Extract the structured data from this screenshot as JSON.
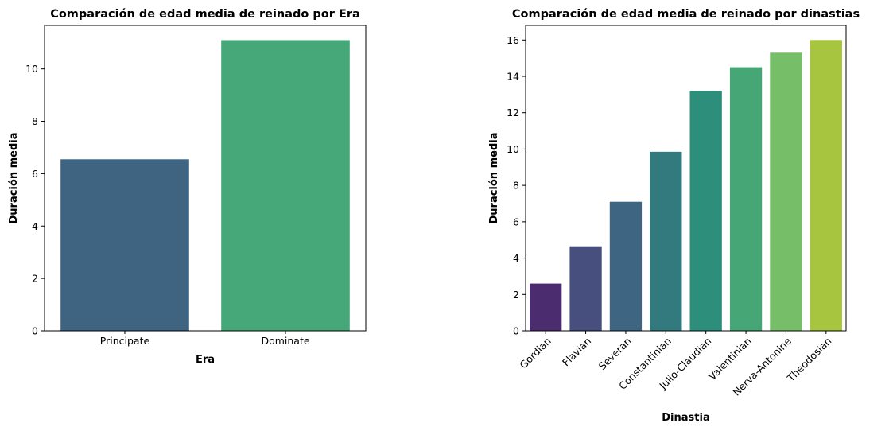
{
  "chart_data": [
    {
      "type": "bar",
      "title": "Comparación de edad media de reinado por Era",
      "xlabel": "Era",
      "ylabel": "Duración media",
      "categories": [
        "Principate",
        "Dominate"
      ],
      "values": [
        6.55,
        11.1
      ],
      "colors": [
        "#3e6482",
        "#46a879"
      ],
      "ylim": [
        0,
        11.66
      ],
      "yticks": [
        0,
        2,
        4,
        6,
        8,
        10
      ],
      "grid": false,
      "xtick_rotation": 0
    },
    {
      "type": "bar",
      "title": "Comparación de edad media de reinado por dinastias",
      "xlabel": "Dinastia",
      "ylabel": "Duración media",
      "categories": [
        "Gordian",
        "Flavian",
        "Severan",
        "Constantinian",
        "Julio-Claudian",
        "Valentinian",
        "Nerva-Antonine",
        "Theodosian"
      ],
      "values": [
        2.6,
        4.65,
        7.1,
        9.85,
        13.2,
        14.5,
        15.3,
        16.0
      ],
      "colors": [
        "#4b2c6e",
        "#474f7e",
        "#3e6682",
        "#337a7e",
        "#2c8e7b",
        "#46a676",
        "#77be68",
        "#a8c540"
      ],
      "ylim": [
        0,
        16.8
      ],
      "yticks": [
        0,
        2,
        4,
        6,
        8,
        10,
        12,
        14,
        16
      ],
      "grid": false,
      "xtick_rotation": -45
    }
  ]
}
